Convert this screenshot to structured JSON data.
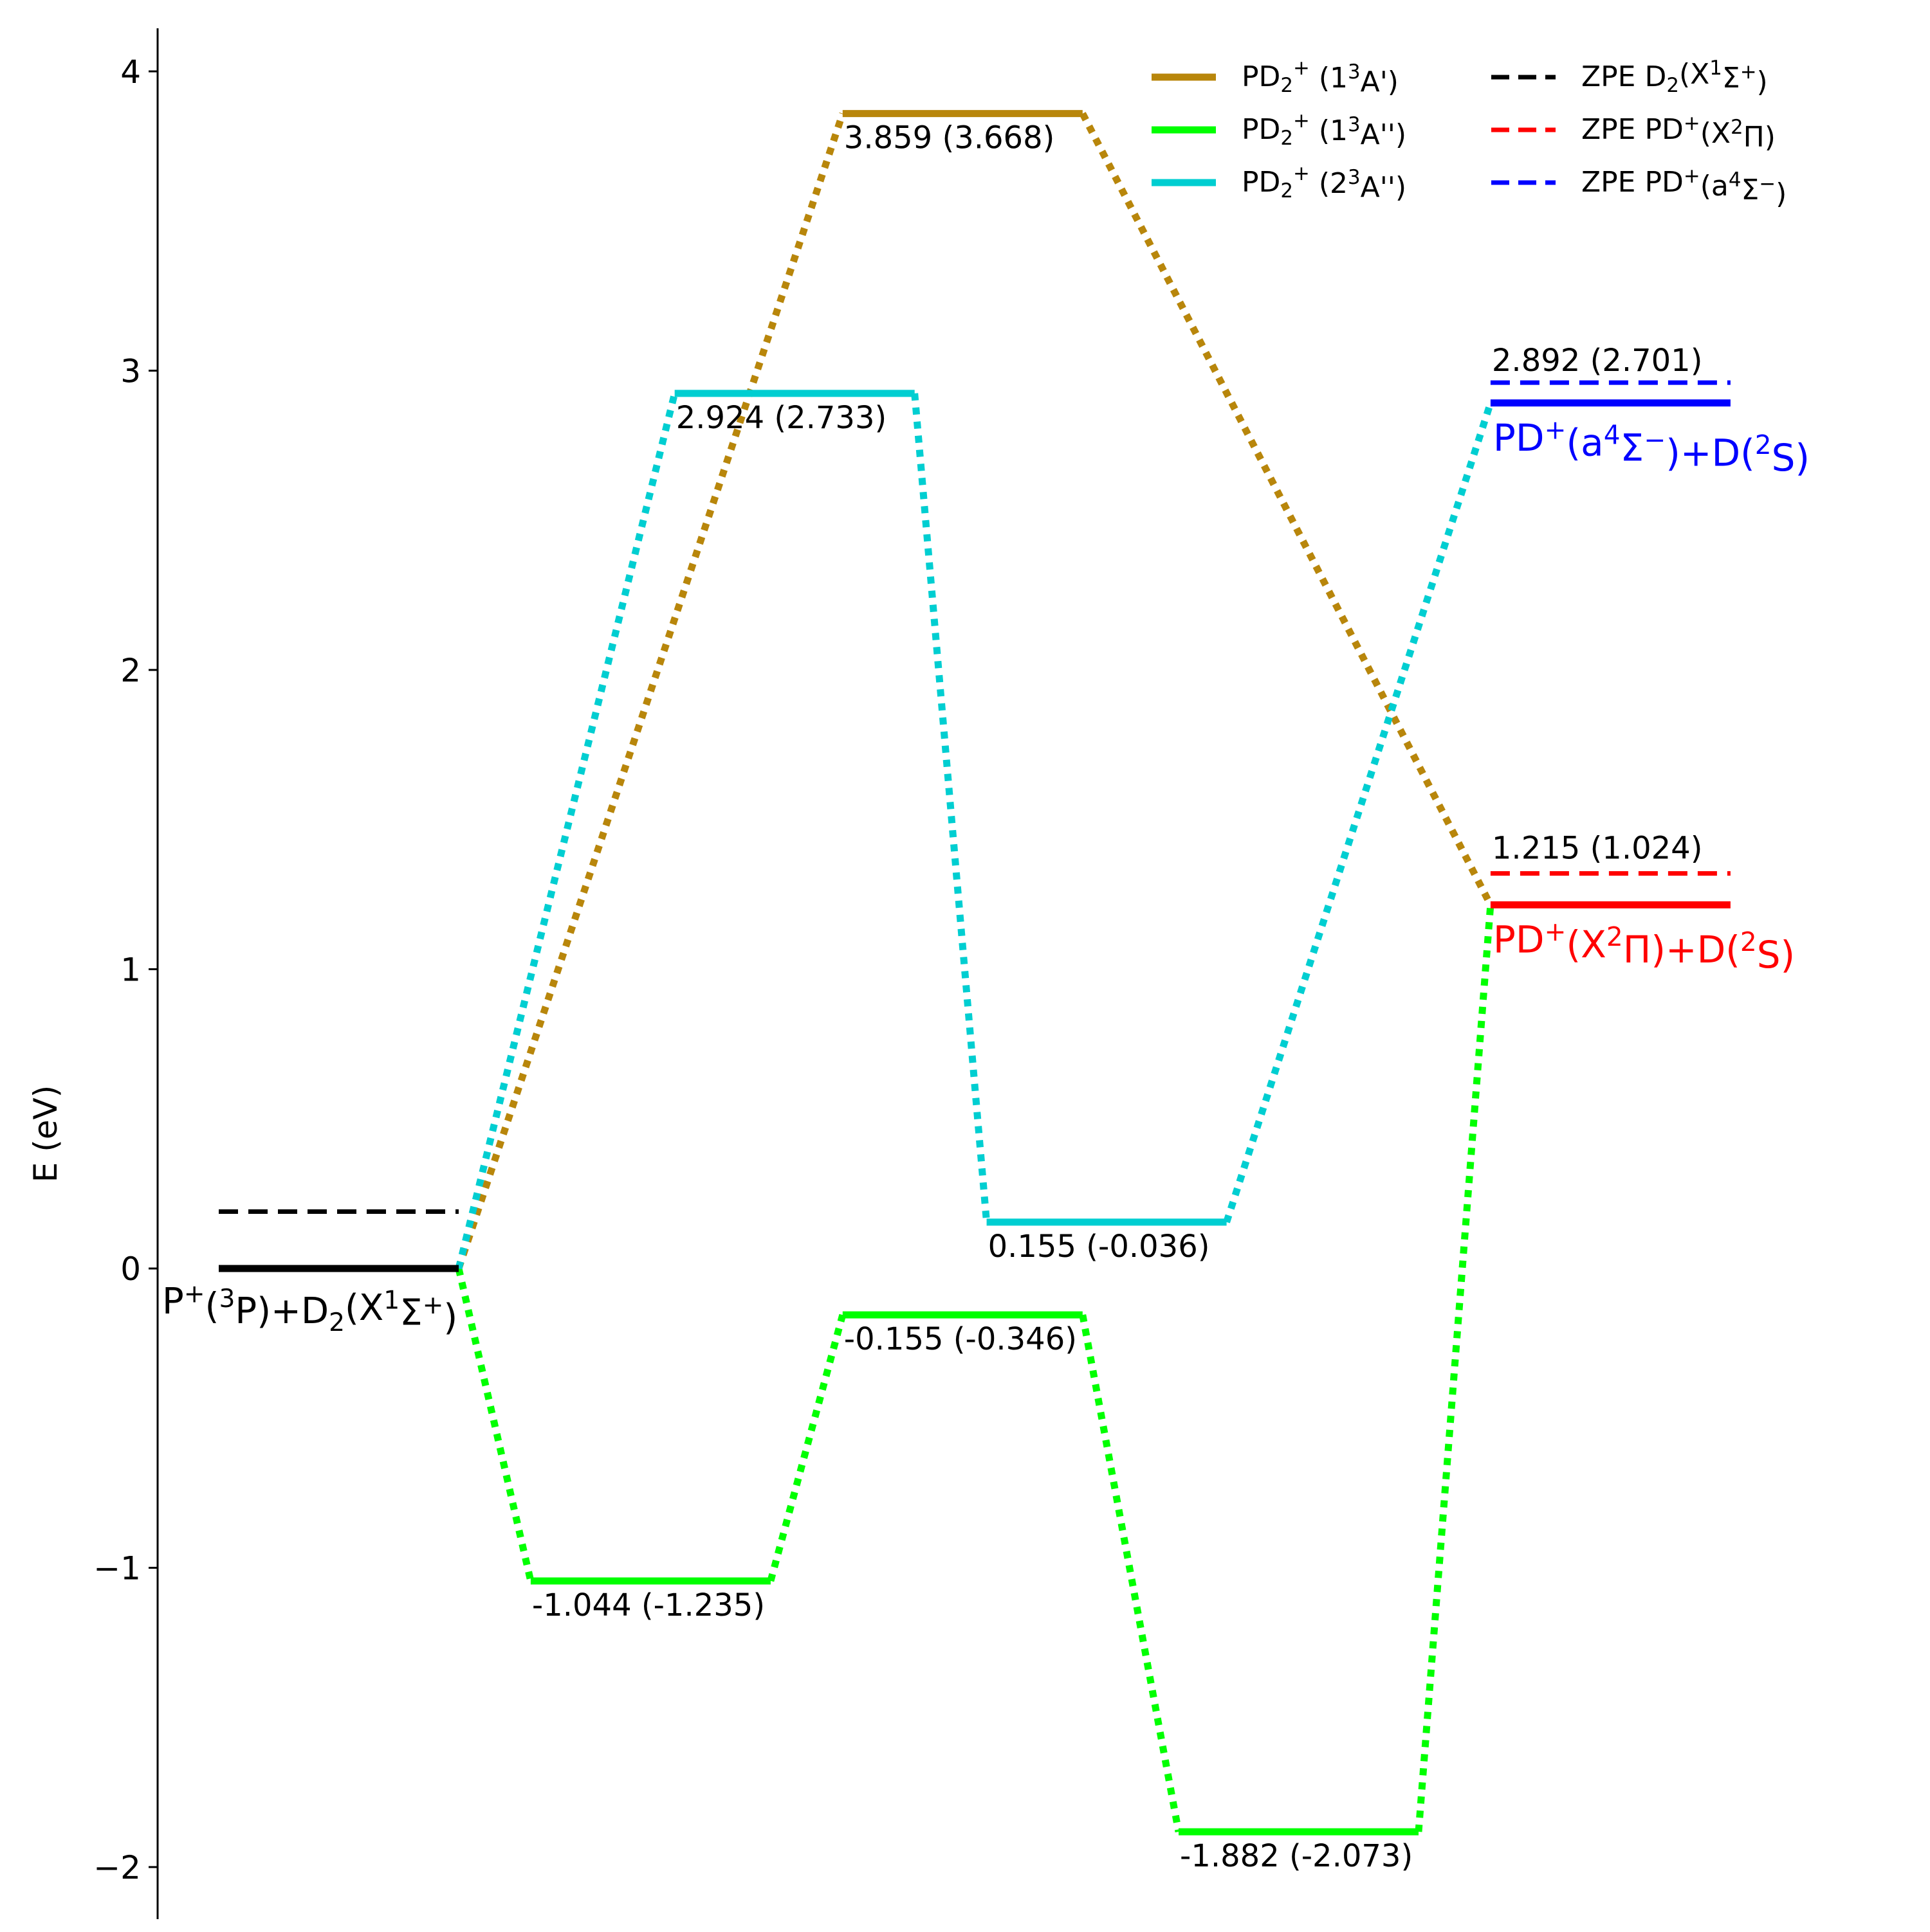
{
  "chart_data": {
    "type": "line",
    "title": "",
    "xlabel": "",
    "ylabel": "E (eV)",
    "ylim": [
      -2.2,
      4.15
    ],
    "yticks": [
      {
        "value": 4,
        "label": "4"
      },
      {
        "value": 3,
        "label": "3"
      },
      {
        "value": 2,
        "label": "2"
      },
      {
        "value": 1,
        "label": "1"
      },
      {
        "value": 0,
        "label": "0"
      },
      {
        "value": -1,
        "label": "−1"
      },
      {
        "value": -2,
        "label": "−2"
      }
    ],
    "grid": false,
    "legend_position": "top-right",
    "levels": [
      {
        "id": "reactant",
        "x": [
          0.0,
          1.0
        ],
        "y": 0.0,
        "color": "#000000",
        "label": null
      },
      {
        "id": "int1",
        "x": [
          1.3,
          2.3
        ],
        "y": -1.044,
        "color": "#00ff00",
        "label": "-1.044 (-1.235)"
      },
      {
        "id": "ts2-green",
        "x": [
          2.6,
          3.6
        ],
        "y": -0.155,
        "color": "#00ff00",
        "label": "-0.155 (-0.346)"
      },
      {
        "id": "int3",
        "x": [
          4.0,
          5.0
        ],
        "y": -1.882,
        "color": "#00ff00",
        "label": "-1.882 (-2.073)"
      },
      {
        "id": "ts-brown",
        "x": [
          2.6,
          3.6
        ],
        "y": 3.859,
        "color": "#b8860b",
        "label": "3.859 (3.668)"
      },
      {
        "id": "ts-cyan",
        "x": [
          1.9,
          2.9
        ],
        "y": 2.924,
        "color": "#00ced1",
        "label": "2.924 (2.733)"
      },
      {
        "id": "int-cyan",
        "x": [
          3.2,
          4.2
        ],
        "y": 0.155,
        "color": "#00ced1",
        "label": "0.155 (-0.036)"
      },
      {
        "id": "prod-x",
        "x": [
          5.3,
          6.3
        ],
        "y": 1.215,
        "color": "#ff0000",
        "label": "1.215 (1.024)"
      },
      {
        "id": "prod-a",
        "x": [
          5.3,
          6.3
        ],
        "y": 2.892,
        "color": "#0000ff",
        "label": "2.892 (2.701)"
      }
    ],
    "zpe_lines": [
      {
        "id": "zpe-d2",
        "x": [
          0.0,
          1.0
        ],
        "y": 0.19,
        "color": "#000000"
      },
      {
        "id": "zpe-pd-x",
        "x": [
          5.3,
          6.3
        ],
        "y": 1.32,
        "color": "#ff0000"
      },
      {
        "id": "zpe-pd-a",
        "x": [
          5.3,
          6.3
        ],
        "y": 2.96,
        "color": "#0000ff"
      }
    ],
    "series": [
      {
        "name": "PD2+ (1³A')",
        "color": "#b8860b",
        "x": [
          1.0,
          2.6,
          3.6,
          5.3
        ],
        "y": [
          0.0,
          3.859,
          3.859,
          1.215
        ]
      },
      {
        "name": "PD2+ (1³A'')",
        "color": "#00ff00",
        "x": [
          1.0,
          1.3,
          2.3,
          2.6,
          3.6,
          4.0,
          5.0,
          5.3
        ],
        "y": [
          0.0,
          -1.044,
          -1.044,
          -0.155,
          -0.155,
          -1.882,
          -1.882,
          1.215
        ]
      },
      {
        "name": "PD2+ (2³A'')",
        "color": "#00ced1",
        "x": [
          1.0,
          1.9,
          2.9,
          3.2,
          4.2,
          5.3
        ],
        "y": [
          0.0,
          2.924,
          2.924,
          0.155,
          0.155,
          2.892
        ]
      }
    ],
    "species_labels": {
      "reactant": "P⁺(³P)+D₂(X¹Σ⁺)",
      "product_a": "PD⁺(a⁴Σ⁻)+D(²S)",
      "product_x": "PD⁺(X²Π)+D(²S)"
    },
    "legend": {
      "entries": [
        {
          "id": "legend-brown",
          "label": "PD₂⁺ (1³A')",
          "color": "#b8860b",
          "style": "solid"
        },
        {
          "id": "legend-green",
          "label": "PD₂⁺ (1³A'')",
          "color": "#00ff00",
          "style": "solid"
        },
        {
          "id": "legend-cyan",
          "label": "PD₂⁺ (2³A'')",
          "color": "#00ced1",
          "style": "solid"
        },
        {
          "id": "legend-zpe-d2",
          "label": "ZPE D₂(X¹Σ⁺)",
          "color": "#000000",
          "style": "dashed"
        },
        {
          "id": "legend-zpe-pdx",
          "label": "ZPE PD⁺(X²Π)",
          "color": "#ff0000",
          "style": "dashed"
        },
        {
          "id": "legend-zpe-pda",
          "label": "ZPE PD⁺(a⁴Σ⁻)",
          "color": "#0000ff",
          "style": "dashed"
        }
      ]
    }
  }
}
